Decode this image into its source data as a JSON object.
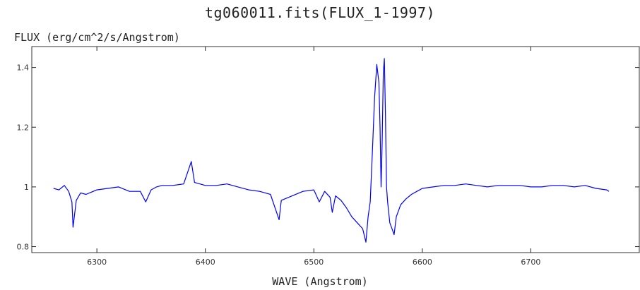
{
  "chart_data": {
    "type": "line",
    "title": "tg060011.fits(FLUX_1-1997)",
    "ylabel": "FLUX (erg/cm^2/s/Angstrom)",
    "xlabel": "WAVE (Angstrom)",
    "xlim": [
      6240,
      6800
    ],
    "ylim": [
      0.78,
      1.47
    ],
    "xticks": [
      6300,
      6400,
      6500,
      6600,
      6700
    ],
    "xtick_labels": [
      "6300",
      "6400",
      "6500",
      "6600",
      "6700"
    ],
    "yticks": [
      0.8,
      1.0,
      1.2,
      1.4
    ],
    "ytick_labels": [
      "0.8",
      "1",
      "1.2",
      "1.4"
    ],
    "line_color": "#0000ff",
    "grid": false,
    "series": [
      {
        "x": [
          6260,
          6265,
          6270,
          6274,
          6277,
          6278,
          6281,
          6285,
          6290,
          6300,
          6310,
          6320,
          6330,
          6340,
          6345,
          6350,
          6355,
          6360,
          6370,
          6380,
          6387,
          6390,
          6400,
          6410,
          6420,
          6430,
          6440,
          6450,
          6460,
          6468,
          6470,
          6480,
          6490,
          6500,
          6505,
          6510,
          6515,
          6517,
          6520,
          6525,
          6530,
          6535,
          6540,
          6545,
          6548,
          6550,
          6552,
          6554,
          6556,
          6558,
          6560,
          6561,
          6562,
          6563,
          6564,
          6565,
          6566,
          6567,
          6568,
          6570,
          6572,
          6574,
          6576,
          6578,
          6580,
          6585,
          6590,
          6595,
          6600,
          6610,
          6620,
          6630,
          6640,
          6650,
          6660,
          6670,
          6680,
          6690,
          6700,
          6710,
          6720,
          6730,
          6740,
          6750,
          6760,
          6770,
          6772
        ],
        "y": [
          0.995,
          0.99,
          1.005,
          0.985,
          0.95,
          0.865,
          0.955,
          0.98,
          0.975,
          0.99,
          0.995,
          1.0,
          0.985,
          0.985,
          0.95,
          0.99,
          1.0,
          1.005,
          1.005,
          1.01,
          1.085,
          1.015,
          1.005,
          1.005,
          1.01,
          1.0,
          0.99,
          0.985,
          0.975,
          0.89,
          0.955,
          0.97,
          0.985,
          0.99,
          0.95,
          0.985,
          0.965,
          0.915,
          0.97,
          0.955,
          0.93,
          0.9,
          0.88,
          0.86,
          0.815,
          0.9,
          0.95,
          1.12,
          1.3,
          1.41,
          1.35,
          1.2,
          1.0,
          1.15,
          1.38,
          1.43,
          1.25,
          1.0,
          0.95,
          0.88,
          0.86,
          0.84,
          0.9,
          0.92,
          0.94,
          0.96,
          0.975,
          0.985,
          0.995,
          1.0,
          1.005,
          1.005,
          1.01,
          1.005,
          1.0,
          1.005,
          1.005,
          1.005,
          1.0,
          1.0,
          1.005,
          1.005,
          1.0,
          1.005,
          0.995,
          0.99,
          0.985
        ]
      }
    ]
  }
}
